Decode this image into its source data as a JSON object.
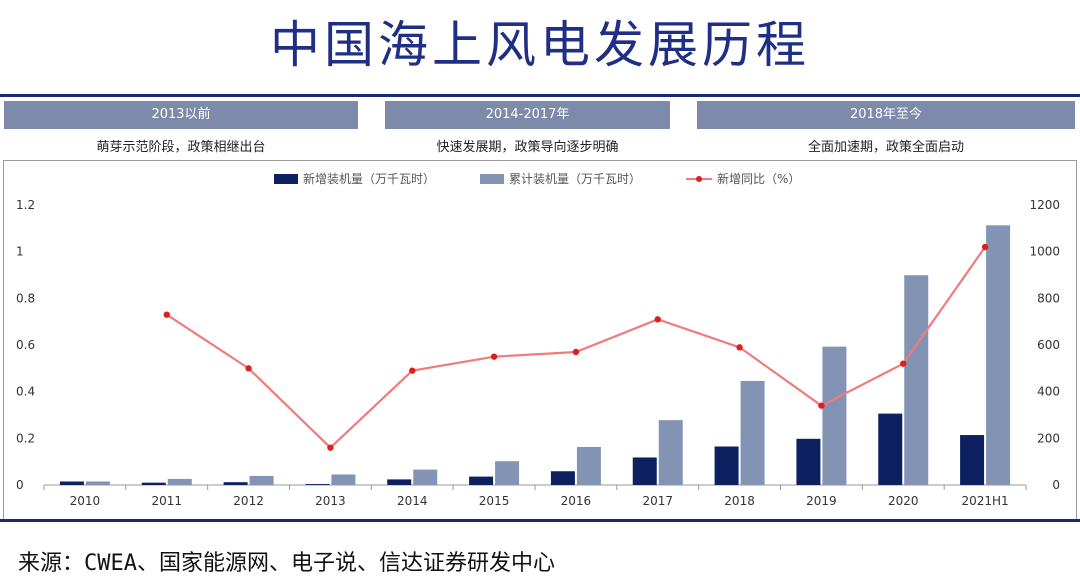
{
  "title": "中国海上风电发展历程",
  "phases": [
    {
      "label": "2013以前",
      "desc": "萌芽示范阶段，政策相继出台"
    },
    {
      "label": "2014-2017年",
      "desc": "快速发展期，政策导向逐步明确"
    },
    {
      "label": "2018年至今",
      "desc": "全面加速期，政策全面启动"
    }
  ],
  "source": "来源：CWEA、国家能源网、电子说、信达证券研发中心",
  "colors": {
    "new_bar": "#0d2160",
    "cum_bar": "#8393b3",
    "yoy_line": "#f07b7b",
    "yoy_marker": "#e01e1e"
  },
  "chart_data": {
    "type": "bar",
    "categories": [
      "2010",
      "2011",
      "2012",
      "2013",
      "2014",
      "2015",
      "2016",
      "2017",
      "2018",
      "2019",
      "2020",
      "2021H1"
    ],
    "series": [
      {
        "name": "新增装机量（万千瓦时）",
        "type": "bar",
        "axis": "right",
        "values": [
          15,
          10,
          12,
          4,
          24,
          36,
          59,
          118,
          165,
          198,
          306,
          214
        ]
      },
      {
        "name": "累计装机量（万千瓦时）",
        "type": "bar",
        "axis": "right",
        "values": [
          15,
          26,
          39,
          45,
          66,
          102,
          163,
          278,
          446,
          593,
          899,
          1113
        ]
      },
      {
        "name": "新增同比（%）",
        "type": "line",
        "axis": "left",
        "values": [
          null,
          0.73,
          0.5,
          0.16,
          0.49,
          0.55,
          0.57,
          0.71,
          0.59,
          0.34,
          0.52,
          1.02
        ]
      }
    ],
    "left_axis": {
      "ylim": [
        0,
        1.2
      ],
      "ticks": [
        "0",
        "0.2",
        "0.4",
        "0.6",
        "0.8",
        "1",
        "1.2"
      ]
    },
    "right_axis": {
      "ylim": [
        0,
        1200
      ],
      "ticks": [
        "0",
        "200",
        "400",
        "600",
        "800",
        "1000",
        "1200"
      ]
    },
    "legend": "top-center"
  }
}
